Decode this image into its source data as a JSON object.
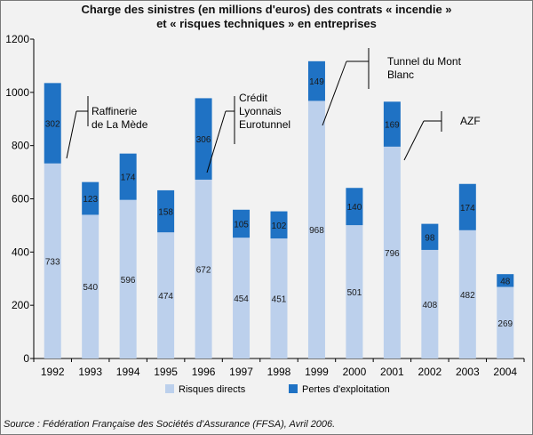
{
  "title_line1": "Charge des sinistres (en millions d'euros) des contrats « incendie »",
  "title_line2": "et « risques techniques » en entreprises",
  "source": "Source : Fédération Française des Sociétés d'Assurance (FFSA), Avril 2006.",
  "colors": {
    "direct": "#bcd0ec",
    "pertes": "#1f72c4",
    "background": "#f2f2f2"
  },
  "chart_data": {
    "type": "bar",
    "stacked": true,
    "categories": [
      "1992",
      "1993",
      "1994",
      "1995",
      "1996",
      "1997",
      "1998",
      "1999",
      "2000",
      "2001",
      "2002",
      "2003",
      "2004"
    ],
    "series": [
      {
        "name": "Risques directs",
        "values": [
          733,
          540,
          596,
          474,
          672,
          454,
          451,
          968,
          501,
          796,
          408,
          482,
          269
        ]
      },
      {
        "name": "Pertes d'exploitation",
        "values": [
          302,
          123,
          174,
          158,
          306,
          105,
          102,
          149,
          140,
          169,
          98,
          174,
          48
        ]
      }
    ],
    "ylim": [
      0,
      1200
    ],
    "yticks": [
      0,
      200,
      400,
      600,
      800,
      1000,
      1200
    ],
    "grid": false,
    "legend_position": "bottom",
    "annotations": [
      {
        "text": [
          "Raffinerie",
          "de La Mède"
        ],
        "year": "1992"
      },
      {
        "text": [
          "Crédit",
          "Lyonnais",
          "Eurotunnel"
        ],
        "year": "1996"
      },
      {
        "text": [
          "Tunnel du Mont",
          "Blanc"
        ],
        "year": "1999"
      },
      {
        "text": [
          "AZF"
        ],
        "year": "2001"
      }
    ]
  }
}
